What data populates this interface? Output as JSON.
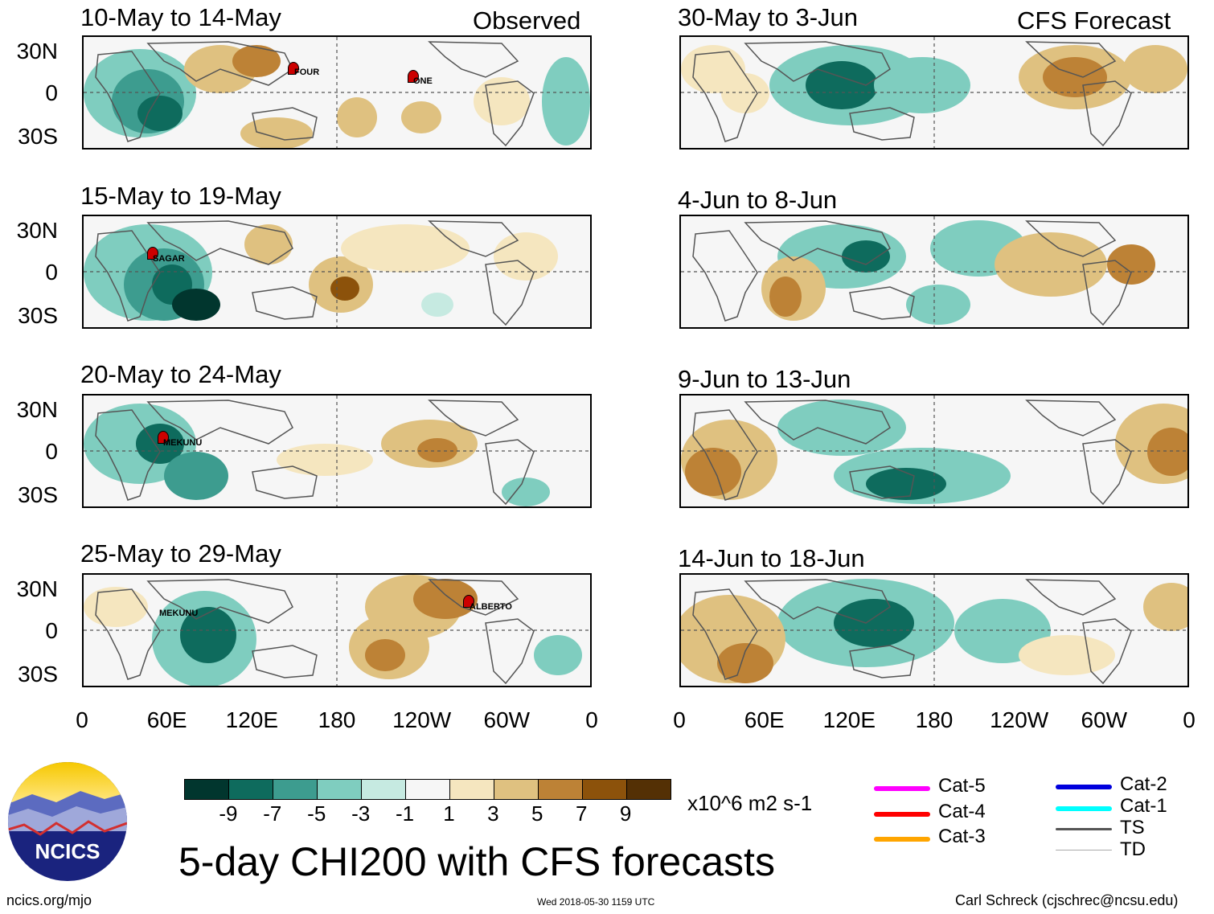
{
  "headers": {
    "observed": "Observed",
    "forecast": "CFS Forecast"
  },
  "observed_panels": [
    {
      "title": "10-May to 14-May",
      "storms": [
        "FOUR",
        "ONE"
      ]
    },
    {
      "title": "15-May to 19-May",
      "storms": [
        "SAGAR"
      ]
    },
    {
      "title": "20-May to 24-May",
      "storms": [
        "MEKUNU"
      ]
    },
    {
      "title": "25-May to 29-May",
      "storms": [
        "MEKUNU",
        "ALBERTO"
      ]
    }
  ],
  "forecast_panels": [
    {
      "title": "30-May to 3-Jun"
    },
    {
      "title": "4-Jun to 8-Jun"
    },
    {
      "title": "9-Jun to 13-Jun"
    },
    {
      "title": "14-Jun to 18-Jun"
    }
  ],
  "lat_labels": [
    "30N",
    "0",
    "30S"
  ],
  "lon_labels": [
    "0",
    "60E",
    "120E",
    "180",
    "120W",
    "60W",
    "0"
  ],
  "colorbar": {
    "colors": [
      "#01362e",
      "#0e6b5d",
      "#3d9c8f",
      "#7fcdbf",
      "#c6eae1",
      "#f6f6f6",
      "#f5e6bf",
      "#dfc180",
      "#bd8236",
      "#8c520b",
      "#543005"
    ],
    "ticks": [
      "-9",
      "-7",
      "-5",
      "-3",
      "-1",
      "1",
      "3",
      "5",
      "7",
      "9"
    ],
    "units": "x10^6 m2 s-1"
  },
  "legend": [
    {
      "label": "Cat-5",
      "color": "#ff00ff"
    },
    {
      "label": "Cat-4",
      "color": "#ff0000"
    },
    {
      "label": "Cat-3",
      "color": "#ffa500"
    },
    {
      "label": "Cat-2",
      "color": "#0000dd"
    },
    {
      "label": "Cat-1",
      "color": "#00ffff"
    },
    {
      "label": "TS",
      "color": "#555555"
    },
    {
      "label": "TD",
      "color": "#aaaaaa"
    }
  ],
  "logo_text": "NCICS",
  "main_title": "5-day CHI200 with CFS forecasts",
  "footer": {
    "left": "ncics.org/mjo",
    "center": "Wed 2018-05-30 1159 UTC",
    "right": "Carl Schreck (cjschrec@ncsu.edu)"
  }
}
